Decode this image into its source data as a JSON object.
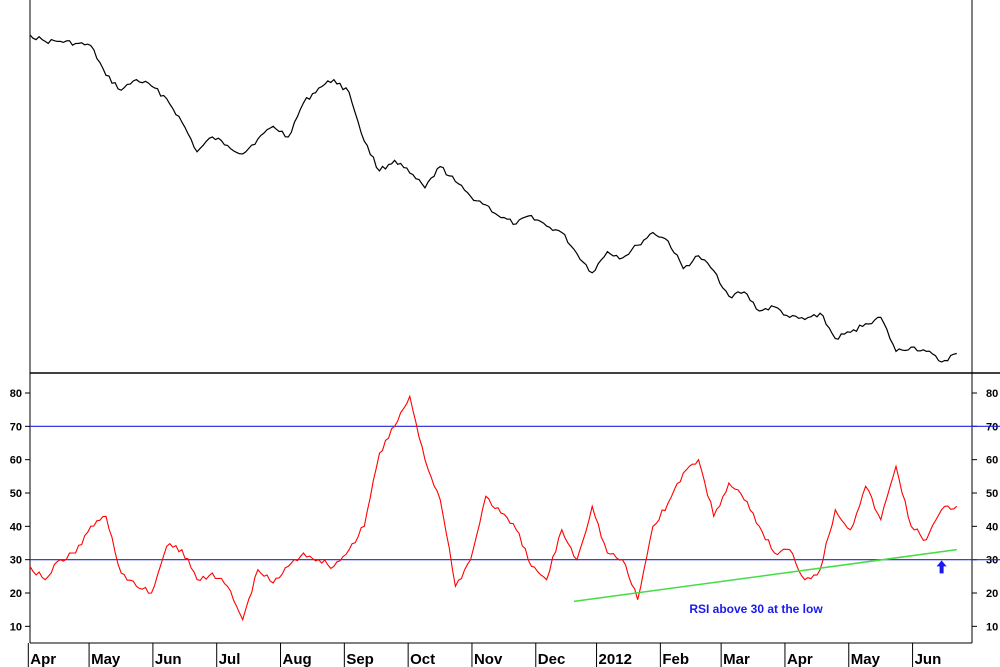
{
  "chart_data": [
    {
      "type": "line",
      "panel": "price",
      "x": [
        0,
        5,
        10,
        15,
        20,
        25,
        30,
        35,
        40,
        45,
        50,
        55,
        60,
        65,
        70,
        75,
        80,
        85,
        90,
        95,
        100,
        105,
        110,
        115,
        120,
        125,
        130,
        135,
        140,
        145,
        150,
        155,
        160,
        165,
        170,
        175,
        180,
        185,
        190,
        195,
        200,
        205,
        210,
        215,
        220,
        225,
        230,
        235,
        240,
        245,
        250,
        255,
        260,
        265,
        270,
        275,
        280,
        285,
        290,
        295,
        300,
        305
      ],
      "series": [
        {
          "color": "#000000",
          "values": [
            100,
            97,
            97,
            96,
            95,
            81,
            74,
            79,
            76,
            70,
            59,
            45,
            52,
            48,
            44,
            51,
            57,
            52,
            68,
            75,
            79,
            73,
            50,
            36,
            41,
            35,
            28,
            38,
            31,
            24,
            20,
            14,
            11,
            15,
            10,
            7,
            -3,
            -12,
            -2,
            -5,
            1,
            7,
            3,
            -10,
            -4,
            -11,
            -23,
            -21,
            -30,
            -28,
            -33,
            -34,
            -31,
            -43,
            -40,
            -36,
            -33,
            -49,
            -47,
            -49,
            -54,
            -50
          ]
        }
      ]
    },
    {
      "type": "line",
      "panel": "indicator",
      "ylim": [
        5,
        86
      ],
      "yticks": [
        10,
        20,
        30,
        40,
        50,
        60,
        70,
        80
      ],
      "x": [
        0,
        5,
        10,
        15,
        20,
        25,
        30,
        35,
        40,
        45,
        50,
        55,
        60,
        65,
        70,
        75,
        80,
        85,
        90,
        95,
        100,
        105,
        110,
        115,
        120,
        125,
        130,
        135,
        140,
        145,
        150,
        155,
        160,
        165,
        170,
        175,
        180,
        185,
        190,
        195,
        200,
        205,
        210,
        215,
        220,
        225,
        230,
        235,
        240,
        245,
        250,
        255,
        260,
        265,
        270,
        275,
        280,
        285,
        290,
        295,
        300,
        305
      ],
      "series": [
        {
          "color": "#ff0000",
          "values": [
            28,
            24,
            30,
            32,
            40,
            43,
            26,
            22,
            20,
            34,
            33,
            24,
            26,
            22,
            12,
            27,
            23,
            28,
            32,
            30,
            28,
            33,
            40,
            62,
            70,
            79,
            60,
            48,
            22,
            30,
            49,
            44,
            39,
            28,
            24,
            39,
            30,
            46,
            32,
            30,
            18,
            40,
            47,
            56,
            60,
            43,
            53,
            48,
            40,
            32,
            33,
            24,
            27,
            45,
            39,
            52,
            42,
            58,
            40,
            36,
            45,
            46
          ]
        }
      ],
      "reference_lines": [
        70,
        30
      ]
    }
  ],
  "axis": {
    "months": [
      "Apr",
      "May",
      "Jun",
      "Jul",
      "Aug",
      "Sep",
      "Oct",
      "Nov",
      "Dec",
      "2012",
      "Feb",
      "Mar",
      "Apr",
      "May",
      "Jun"
    ],
    "month_x": [
      8,
      28,
      49,
      70,
      91,
      112,
      133,
      154,
      175,
      195,
      216,
      236,
      257,
      278,
      299
    ]
  },
  "trendline": {
    "color": "#44dd44",
    "from": [
      179,
      17.5
    ],
    "to": [
      305,
      33
    ]
  },
  "annotation": {
    "text": "RSI above 30 at the low",
    "color": "#1a1aee",
    "arrow_at": [
      300,
      28
    ]
  }
}
